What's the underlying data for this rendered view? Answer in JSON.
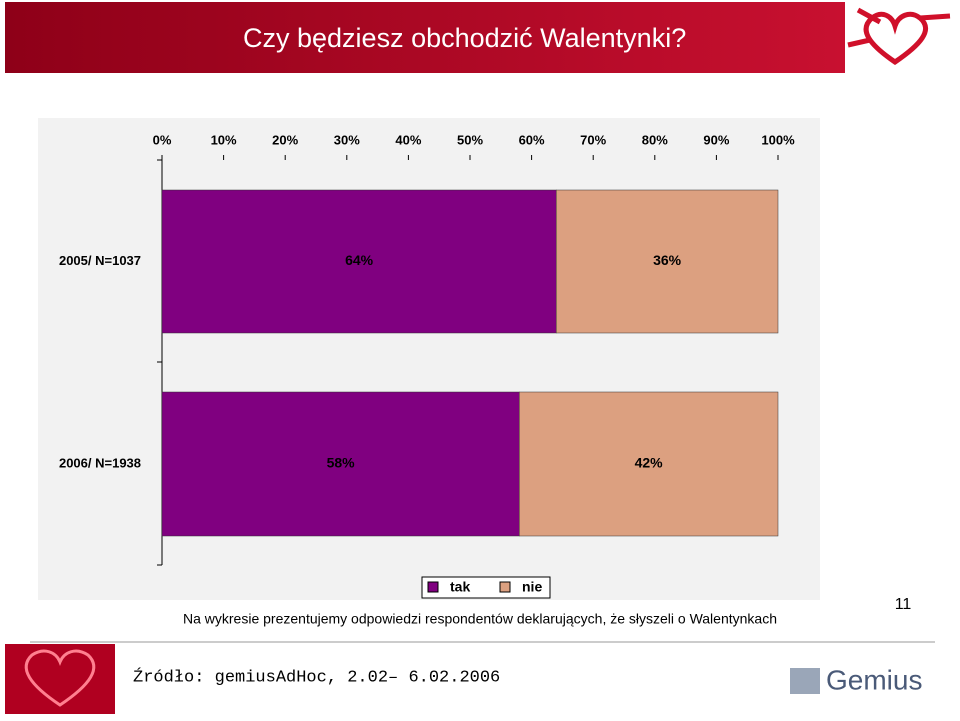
{
  "slide": {
    "title": "Czy będziesz obchodzić Walentynki?",
    "caption": "Na wykresie prezentujemy odpowiedzi respondentów deklarujących, że słyszeli o Walentynkach",
    "page_number": "11",
    "source": "Źródło: gemiusAdHoc, 2.02– 6.02.2006",
    "logo": "Gemius"
  },
  "chart_data": {
    "type": "stacked-barh",
    "categories": [
      "2005/ N=1037",
      "2006/ N=1938"
    ],
    "series": [
      {
        "name": "tak",
        "color": "#800080",
        "values": [
          64,
          58
        ],
        "value_labels": [
          "64%",
          "58%"
        ]
      },
      {
        "name": "nie",
        "color": "#dca080",
        "values": [
          36,
          42
        ],
        "value_labels": [
          "36%",
          "42%"
        ]
      }
    ],
    "xlim": [
      0,
      100
    ],
    "xticks": [
      {
        "value": 0,
        "label": "0%"
      },
      {
        "value": 10,
        "label": "10%"
      },
      {
        "value": 20,
        "label": "20%"
      },
      {
        "value": 30,
        "label": "30%"
      },
      {
        "value": 40,
        "label": "40%"
      },
      {
        "value": 50,
        "label": "50%"
      },
      {
        "value": 60,
        "label": "60%"
      },
      {
        "value": 70,
        "label": "70%"
      },
      {
        "value": 80,
        "label": "80%"
      },
      {
        "value": 90,
        "label": "90%"
      },
      {
        "value": 100,
        "label": "100%"
      }
    ],
    "legend": "bottom"
  }
}
